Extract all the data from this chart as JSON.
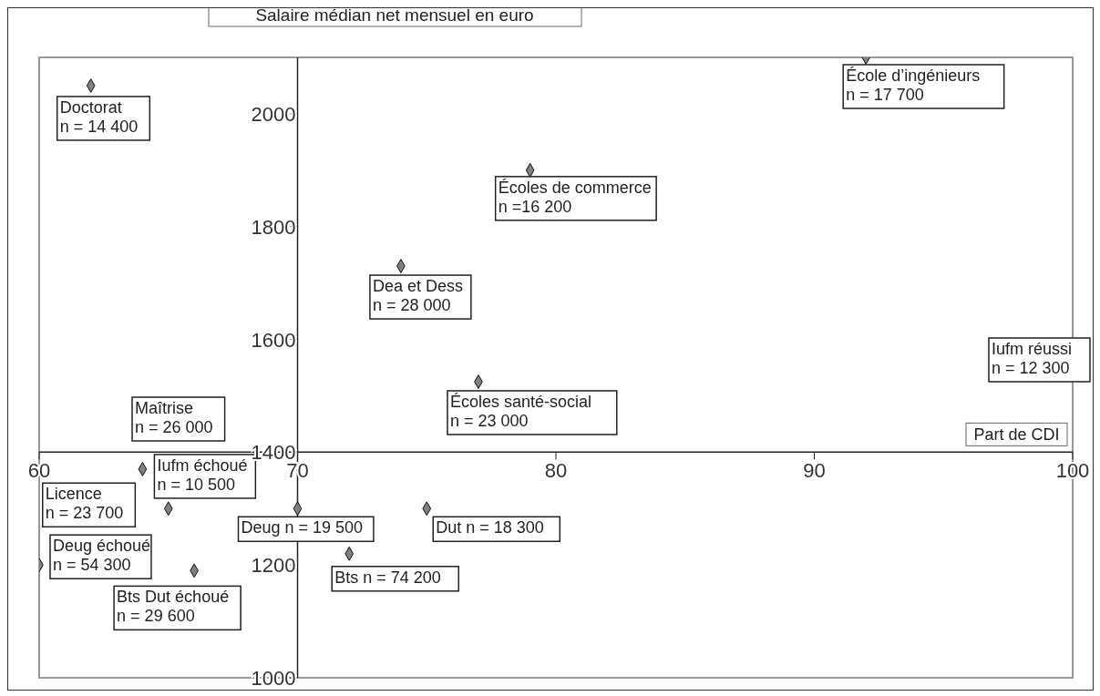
{
  "chart_data": {
    "type": "scatter",
    "xlabel": "Part de CDI",
    "ylabel": "Salaire médian net mensuel en euro",
    "x": [
      62,
      92,
      79,
      74,
      77,
      64,
      65,
      70,
      75,
      72,
      60,
      66
    ],
    "values": [
      2050,
      2100,
      1900,
      1730,
      1525,
      1370,
      1300,
      1300,
      1300,
      1220,
      1200,
      1190
    ],
    "color": "#808080",
    "marker": "diamond",
    "grid": false,
    "legend": false,
    "xlim": [
      60,
      100
    ],
    "xticks": [
      60,
      70,
      80,
      90,
      100
    ],
    "ylim": [
      1000,
      2100
    ],
    "yticks": [
      1000,
      1200,
      1400,
      1600,
      1800,
      2000
    ],
    "annotations": [
      {
        "text": "Doctorat\nn = 14 400",
        "x": 62,
        "y": 2050
      },
      {
        "text": "École d’ingénieurs\nn = 17 700",
        "x": 92,
        "y": 2100
      },
      {
        "text": "Écoles de commerce\nn =16 200",
        "x": 79,
        "y": 1900
      },
      {
        "text": "Dea et Dess\nn = 28 000",
        "x": 74,
        "y": 1730
      },
      {
        "text": "Écoles santé-social\nn = 23 000",
        "x": 77,
        "y": 1525
      },
      {
        "text": "Iufm échoué\nn = 10 500",
        "x": 64,
        "y": 1370
      },
      {
        "text": "Licence\nn = 23 700",
        "x": 65,
        "y": 1300
      },
      {
        "text": "Deug n = 19 500",
        "x": 70,
        "y": 1300
      },
      {
        "text": "Dut n = 18 300",
        "x": 75,
        "y": 1300
      },
      {
        "text": "Bts n = 74 200",
        "x": 72,
        "y": 1220
      },
      {
        "text": "Deug échoué\nn = 54 300",
        "x": 60,
        "y": 1200
      },
      {
        "text": "Bts Dut échoué\nn = 29 600",
        "x": 66,
        "y": 1190
      },
      "Maîtrise\nn = 26 000",
      "Iufm réussi\nn = 12 300"
    ]
  }
}
